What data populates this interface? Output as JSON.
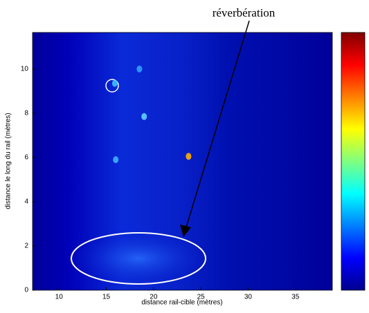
{
  "chart_data": {
    "type": "scatter",
    "annotation": "réverbération",
    "xlabel": "distance rail-cible (mètres)",
    "ylabel": "distance le long du rail (mètres)",
    "x": [
      23.7,
      15.9,
      19.0,
      16.0,
      18.5
    ],
    "values": [
      6.05,
      9.35,
      7.85,
      5.9,
      10.0
    ],
    "colors": [
      "#ffb000",
      "#40c0ff",
      "#60d0ff",
      "#40b0ff",
      "#30a0ff"
    ],
    "xlim": [
      7.2,
      38.9
    ],
    "xticks": [
      10,
      15,
      20,
      25,
      30,
      35
    ],
    "ylim": [
      0,
      11.65
    ],
    "yticks": [
      0,
      2,
      4,
      6,
      8,
      10
    ]
  }
}
